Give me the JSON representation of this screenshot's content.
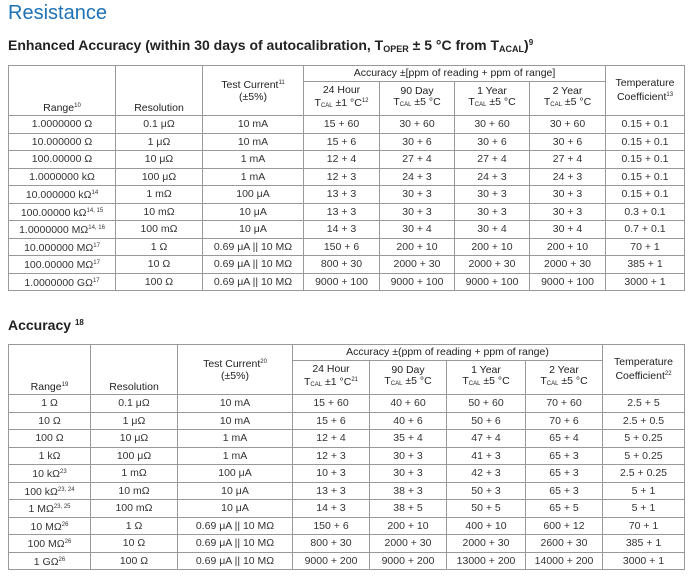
{
  "page_title": "Resistance",
  "section1": {
    "title_text": "Enhanced Accuracy (within 30 days of autocalibration, T",
    "title_sub1": "OPER",
    "title_mid": " ± 5 °C from T",
    "title_sub2": "ACAL",
    "title_end": ")",
    "title_note": "9",
    "headers": {
      "range": "Range",
      "range_note": "10",
      "resolution": "Resolution",
      "test_current": "Test Current",
      "test_current_note": "11",
      "test_current_tol": "(±5%)",
      "accuracy_group": "Accuracy ±[ppm of reading + ppm of range]",
      "h24_label": "24 Hour",
      "h24_t": "T",
      "h24_sub": "CAL",
      "h24_tol": " ±1 °C",
      "h24_note": "12",
      "d90_label": "90 Day",
      "d90_t": "T",
      "d90_sub": "CAL",
      "d90_tol": " ±5 °C",
      "y1_label": "1 Year",
      "y1_t": "T",
      "y1_sub": "CAL",
      "y1_tol": " ±5 °C",
      "y2_label": "2 Year",
      "y2_t": "T",
      "y2_sub": "CAL",
      "y2_tol": " ±5 °C",
      "temp_label": "Temperature",
      "temp_coef": "Coefficient",
      "temp_note": "13"
    },
    "rows": [
      {
        "range": "1.0000000 Ω",
        "note": "",
        "resolution": "0.1 μΩ",
        "current": "10 mA",
        "h24": "15 + 60",
        "d90": "30 + 60",
        "y1": "30 + 60",
        "y2": "30 + 60",
        "temp": "0.15 + 0.1"
      },
      {
        "range": "10.000000 Ω",
        "note": "",
        "resolution": "1 μΩ",
        "current": "10 mA",
        "h24": "15 + 6",
        "d90": "30 + 6",
        "y1": "30 + 6",
        "y2": "30 + 6",
        "temp": "0.15 + 0.1"
      },
      {
        "range": "100.00000 Ω",
        "note": "",
        "resolution": "10 μΩ",
        "current": "1 mA",
        "h24": "12 + 4",
        "d90": "27 + 4",
        "y1": "27 + 4",
        "y2": "27 + 4",
        "temp": "0.15 + 0.1"
      },
      {
        "range": "1.0000000 kΩ",
        "note": "",
        "resolution": "100 μΩ",
        "current": "1 mA",
        "h24": "12 + 3",
        "d90": "24 + 3",
        "y1": "24 + 3",
        "y2": "24 + 3",
        "temp": "0.15 + 0.1"
      },
      {
        "range": "10.000000 kΩ",
        "note": "14",
        "resolution": "1 mΩ",
        "current": "100 μA",
        "h24": "13 + 3",
        "d90": "30 + 3",
        "y1": "30 + 3",
        "y2": "30 + 3",
        "temp": "0.15 + 0.1"
      },
      {
        "range": "100.00000 kΩ",
        "note": "14, 15",
        "resolution": "10 mΩ",
        "current": "10 μA",
        "h24": "13 + 3",
        "d90": "30 + 3",
        "y1": "30 + 3",
        "y2": "30 + 3",
        "temp": "0.3 + 0.1"
      },
      {
        "range": "1.0000000 MΩ",
        "note": "14, 16",
        "resolution": "100 mΩ",
        "current": "10 μA",
        "h24": "14 + 3",
        "d90": "30 + 4",
        "y1": "30 + 4",
        "y2": "30 + 4",
        "temp": "0.7 + 0.1"
      },
      {
        "range": "10.000000 MΩ",
        "note": "17",
        "resolution": "1 Ω",
        "current": "0.69 μA || 10 MΩ",
        "h24": "150 + 6",
        "d90": "200 + 10",
        "y1": "200 + 10",
        "y2": "200 + 10",
        "temp": "70 + 1"
      },
      {
        "range": "100.00000 MΩ",
        "note": "17",
        "resolution": "10 Ω",
        "current": "0.69 μA || 10 MΩ",
        "h24": "800 + 30",
        "d90": "2000 + 30",
        "y1": "2000 + 30",
        "y2": "2000 + 30",
        "temp": "385 + 1"
      },
      {
        "range": "1.0000000 GΩ",
        "note": "17",
        "resolution": "100 Ω",
        "current": "0.69 μA || 10 MΩ",
        "h24": "9000 + 100",
        "d90": "9000 + 100",
        "y1": "9000 + 100",
        "y2": "9000 + 100",
        "temp": "3000 + 1"
      }
    ]
  },
  "section2": {
    "title_text": "Accuracy",
    "title_note": "18",
    "headers": {
      "range": "Range",
      "range_note": "19",
      "resolution": "Resolution",
      "test_current": "Test Current",
      "test_current_note": "20",
      "test_current_tol": "(±5%)",
      "accuracy_group": "Accuracy ±(ppm of reading + ppm of range)",
      "h24_label": "24 Hour",
      "h24_t": "T",
      "h24_sub": "CAL",
      "h24_tol": " ±1 °C",
      "h24_note": "21",
      "d90_label": "90 Day",
      "d90_t": "T",
      "d90_sub": "CAL",
      "d90_tol": " ±5 °C",
      "y1_label": "1 Year",
      "y1_t": "T",
      "y1_sub": "CAL",
      "y1_tol": " ±5 °C",
      "y2_label": "2 Year",
      "y2_t": "T",
      "y2_sub": "CAL",
      "y2_tol": " ±5 °C",
      "temp_label": "Temperature",
      "temp_coef": "Coefficient",
      "temp_note": "22"
    },
    "rows": [
      {
        "range": "1 Ω",
        "note": "",
        "resolution": "0.1 μΩ",
        "current": "10 mA",
        "h24": "15 + 60",
        "d90": "40 + 60",
        "y1": "50 + 60",
        "y2": "70 + 60",
        "temp": "2.5 + 5"
      },
      {
        "range": "10 Ω",
        "note": "",
        "resolution": "1 μΩ",
        "current": "10 mA",
        "h24": "15 + 6",
        "d90": "40 + 6",
        "y1": "50 + 6",
        "y2": "70 + 6",
        "temp": "2.5 + 0.5"
      },
      {
        "range": "100 Ω",
        "note": "",
        "resolution": "10 μΩ",
        "current": "1 mA",
        "h24": "12 + 4",
        "d90": "35 + 4",
        "y1": "47 + 4",
        "y2": "65 + 4",
        "temp": "5 + 0.25"
      },
      {
        "range": "1 kΩ",
        "note": "",
        "resolution": "100 μΩ",
        "current": "1 mA",
        "h24": "12 + 3",
        "d90": "30 + 3",
        "y1": "41 + 3",
        "y2": "65 + 3",
        "temp": "5 + 0.25"
      },
      {
        "range": "10 kΩ",
        "note": "23",
        "resolution": "1 mΩ",
        "current": "100 μA",
        "h24": "10 + 3",
        "d90": "30 + 3",
        "y1": "42 + 3",
        "y2": "65 + 3",
        "temp": "2.5 + 0.25"
      },
      {
        "range": "100 kΩ",
        "note": "23, 24",
        "resolution": "10 mΩ",
        "current": "10 μA",
        "h24": "13 + 3",
        "d90": "38 + 3",
        "y1": "50 + 3",
        "y2": "65 + 3",
        "temp": "5 + 1"
      },
      {
        "range": "1 MΩ",
        "note": "23, 25",
        "resolution": "100 mΩ",
        "current": "10 μA",
        "h24": "14 + 3",
        "d90": "38 + 5",
        "y1": "50 + 5",
        "y2": "65 + 5",
        "temp": "5 + 1"
      },
      {
        "range": "10 MΩ",
        "note": "26",
        "resolution": "1 Ω",
        "current": "0.69 μA || 10 MΩ",
        "h24": "150 + 6",
        "d90": "200 + 10",
        "y1": "400 + 10",
        "y2": "600 + 12",
        "temp": "70 + 1"
      },
      {
        "range": "100 MΩ",
        "note": "26",
        "resolution": "10 Ω",
        "current": "0.69 μA || 10 MΩ",
        "h24": "800 + 30",
        "d90": "2000 + 30",
        "y1": "2000 + 30",
        "y2": "2600 + 30",
        "temp": "385 + 1"
      },
      {
        "range": "1 GΩ",
        "note": "26",
        "resolution": "100 Ω",
        "current": "0.69 μA || 10 MΩ",
        "h24": "9000 + 200",
        "d90": "9000 + 200",
        "y1": "13000 + 200",
        "y2": "14000 + 200",
        "temp": "3000 + 1"
      }
    ]
  }
}
